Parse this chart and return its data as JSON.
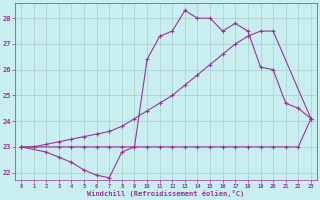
{
  "xlabel": "Windchill (Refroidissement éolien,°C)",
  "bg_color": "#c8eef0",
  "grid_color": "#aacccc",
  "line_color": "#993399",
  "xlim": [
    -0.5,
    23.5
  ],
  "ylim": [
    21.7,
    28.6
  ],
  "yticks": [
    22,
    23,
    24,
    25,
    26,
    27,
    28
  ],
  "xticks": [
    0,
    1,
    2,
    3,
    4,
    5,
    6,
    7,
    8,
    9,
    10,
    11,
    12,
    13,
    14,
    15,
    16,
    17,
    18,
    19,
    20,
    21,
    22,
    23
  ],
  "line1_x": [
    0,
    1,
    3,
    4,
    5,
    6,
    7,
    8,
    9,
    10,
    11,
    12,
    13,
    14,
    15,
    16,
    17,
    18,
    19,
    20,
    21,
    22,
    23
  ],
  "line1_y": [
    23.0,
    23.0,
    23.0,
    23.0,
    23.0,
    23.0,
    23.0,
    23.0,
    23.0,
    23.0,
    23.0,
    23.0,
    23.0,
    23.0,
    23.0,
    23.0,
    23.0,
    23.0,
    23.0,
    23.0,
    23.0,
    23.0,
    24.1
  ],
  "line2_x": [
    0,
    2,
    3,
    4,
    5,
    6,
    7,
    8,
    9,
    10,
    11,
    12,
    13,
    14,
    15,
    16,
    17,
    18,
    19,
    20,
    21,
    22,
    23
  ],
  "line2_y": [
    23.0,
    22.8,
    22.6,
    22.4,
    22.1,
    21.9,
    21.8,
    22.8,
    23.0,
    26.4,
    27.3,
    27.5,
    28.3,
    28.0,
    28.0,
    27.5,
    27.8,
    27.5,
    26.1,
    26.0,
    24.7,
    24.5,
    24.1
  ],
  "line3_x": [
    0,
    1,
    2,
    3,
    4,
    5,
    6,
    7,
    8,
    9,
    10,
    11,
    12,
    13,
    14,
    15,
    16,
    17,
    18,
    19,
    20,
    23
  ],
  "line3_y": [
    23.0,
    23.0,
    23.1,
    23.2,
    23.3,
    23.4,
    23.5,
    23.6,
    23.8,
    24.1,
    24.4,
    24.7,
    25.0,
    25.4,
    25.8,
    26.2,
    26.6,
    27.0,
    27.3,
    27.5,
    27.5,
    24.1
  ]
}
